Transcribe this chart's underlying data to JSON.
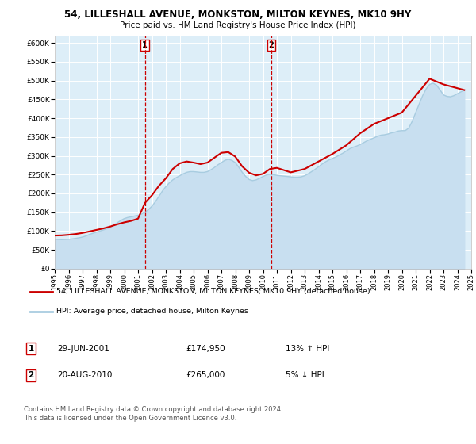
{
  "title": "54, LILLESHALL AVENUE, MONKSTON, MILTON KEYNES, MK10 9HY",
  "subtitle": "Price paid vs. HM Land Registry's House Price Index (HPI)",
  "ylabel_ticks": [
    "£0",
    "£50K",
    "£100K",
    "£150K",
    "£200K",
    "£250K",
    "£300K",
    "£350K",
    "£400K",
    "£450K",
    "£500K",
    "£550K",
    "£600K"
  ],
  "ylim": [
    0,
    620000
  ],
  "ytick_vals": [
    0,
    50000,
    100000,
    150000,
    200000,
    250000,
    300000,
    350000,
    400000,
    450000,
    500000,
    550000,
    600000
  ],
  "background_color": "#ddeef8",
  "hpi_color": "#a8cce0",
  "hpi_fill_color": "#c8dff0",
  "price_color": "#cc0000",
  "marker1_year": 2001.5,
  "marker2_year": 2010.6,
  "vline_color": "#cc0000",
  "legend_entry1": "54, LILLESHALL AVENUE, MONKSTON, MILTON KEYNES, MK10 9HY (detached house)",
  "legend_entry2": "HPI: Average price, detached house, Milton Keynes",
  "table_row1": [
    "1",
    "29-JUN-2001",
    "£174,950",
    "13% ↑ HPI"
  ],
  "table_row2": [
    "2",
    "20-AUG-2010",
    "£265,000",
    "5% ↓ HPI"
  ],
  "footnote": "Contains HM Land Registry data © Crown copyright and database right 2024.\nThis data is licensed under the Open Government Licence v3.0.",
  "hpi_data_x": [
    1995.0,
    1995.25,
    1995.5,
    1995.75,
    1996.0,
    1996.25,
    1996.5,
    1996.75,
    1997.0,
    1997.25,
    1997.5,
    1997.75,
    1998.0,
    1998.25,
    1998.5,
    1998.75,
    1999.0,
    1999.25,
    1999.5,
    1999.75,
    2000.0,
    2000.25,
    2000.5,
    2000.75,
    2001.0,
    2001.25,
    2001.5,
    2001.75,
    2002.0,
    2002.25,
    2002.5,
    2002.75,
    2003.0,
    2003.25,
    2003.5,
    2003.75,
    2004.0,
    2004.25,
    2004.5,
    2004.75,
    2005.0,
    2005.25,
    2005.5,
    2005.75,
    2006.0,
    2006.25,
    2006.5,
    2006.75,
    2007.0,
    2007.25,
    2007.5,
    2007.75,
    2008.0,
    2008.25,
    2008.5,
    2008.75,
    2009.0,
    2009.25,
    2009.5,
    2009.75,
    2010.0,
    2010.25,
    2010.5,
    2010.75,
    2011.0,
    2011.25,
    2011.5,
    2011.75,
    2012.0,
    2012.25,
    2012.5,
    2012.75,
    2013.0,
    2013.25,
    2013.5,
    2013.75,
    2014.0,
    2014.25,
    2014.5,
    2014.75,
    2015.0,
    2015.25,
    2015.5,
    2015.75,
    2016.0,
    2016.25,
    2016.5,
    2016.75,
    2017.0,
    2017.25,
    2017.5,
    2017.75,
    2018.0,
    2018.25,
    2018.5,
    2018.75,
    2019.0,
    2019.25,
    2019.5,
    2019.75,
    2020.0,
    2020.25,
    2020.5,
    2020.75,
    2021.0,
    2021.25,
    2021.5,
    2021.75,
    2022.0,
    2022.25,
    2022.5,
    2022.75,
    2023.0,
    2023.25,
    2023.5,
    2023.75,
    2024.0,
    2024.25,
    2024.5
  ],
  "hpi_data_y": [
    78000,
    77500,
    77000,
    77500,
    78000,
    79000,
    80500,
    82000,
    84000,
    87000,
    91000,
    94000,
    97000,
    100000,
    103000,
    106000,
    110000,
    116000,
    122000,
    128000,
    133000,
    136000,
    138000,
    140000,
    142000,
    145000,
    150000,
    157000,
    166000,
    178000,
    192000,
    206000,
    218000,
    228000,
    236000,
    242000,
    247000,
    252000,
    256000,
    258000,
    258000,
    257000,
    256000,
    256000,
    258000,
    263000,
    269000,
    276000,
    282000,
    288000,
    291000,
    288000,
    282000,
    270000,
    256000,
    245000,
    237000,
    234000,
    236000,
    240000,
    245000,
    249000,
    251000,
    250000,
    248000,
    247000,
    246000,
    245000,
    244000,
    243000,
    243000,
    244000,
    247000,
    252000,
    258000,
    264000,
    271000,
    278000,
    284000,
    289000,
    293000,
    297000,
    302000,
    307000,
    313000,
    319000,
    323000,
    326000,
    330000,
    335000,
    340000,
    344000,
    348000,
    352000,
    355000,
    356000,
    358000,
    361000,
    363000,
    366000,
    367000,
    367000,
    374000,
    392000,
    415000,
    438000,
    460000,
    478000,
    490000,
    493000,
    488000,
    475000,
    462000,
    458000,
    457000,
    460000,
    465000,
    470000,
    475000
  ],
  "price_data_x": [
    1995.0,
    1995.5,
    1996.0,
    1996.5,
    1997.0,
    1997.5,
    1998.0,
    1998.5,
    1999.0,
    1999.5,
    2000.0,
    2000.5,
    2001.0,
    2001.5,
    2002.0,
    2002.5,
    2003.0,
    2003.5,
    2004.0,
    2004.5,
    2005.0,
    2005.5,
    2006.0,
    2006.5,
    2007.0,
    2007.5,
    2008.0,
    2008.5,
    2009.0,
    2009.5,
    2010.0,
    2010.5,
    2011.0,
    2011.5,
    2012.0,
    2013.0,
    2014.0,
    2015.0,
    2016.0,
    2017.0,
    2018.0,
    2019.0,
    2020.0,
    2021.0,
    2022.0,
    2023.0,
    2024.0,
    2024.5
  ],
  "price_data_y": [
    88000,
    88500,
    90000,
    92000,
    95000,
    99000,
    103000,
    107000,
    112000,
    118000,
    123000,
    127000,
    133000,
    174950,
    195000,
    220000,
    240000,
    265000,
    280000,
    285000,
    282000,
    278000,
    282000,
    295000,
    308000,
    310000,
    298000,
    272000,
    255000,
    248000,
    252000,
    265000,
    268000,
    262000,
    256000,
    265000,
    285000,
    305000,
    328000,
    360000,
    385000,
    400000,
    415000,
    460000,
    505000,
    490000,
    480000,
    475000
  ]
}
